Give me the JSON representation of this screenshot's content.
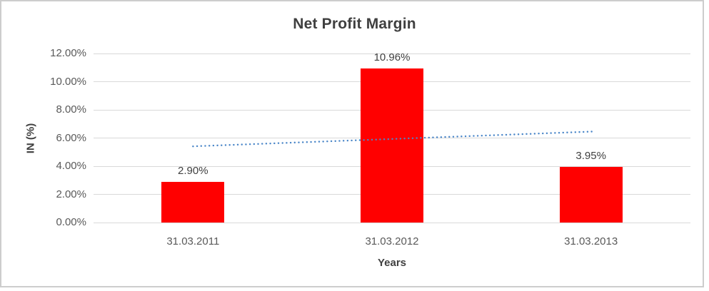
{
  "frame": {
    "border_color": "#cdcdcd",
    "background_color": "#ffffff"
  },
  "chart_data": {
    "type": "bar",
    "title": "Net Profit Margin",
    "xlabel": "Years",
    "ylabel": "IN (%)",
    "categories": [
      "31.03.2011",
      "31.03.2012",
      "31.03.2013"
    ],
    "series": [
      {
        "name": "Net Profit Margin",
        "values": [
          2.9,
          10.96,
          3.95
        ]
      }
    ],
    "data_labels": [
      "2.90%",
      "10.96%",
      "3.95%"
    ],
    "ylim": [
      0,
      12
    ],
    "ytick_step": 2,
    "ytick_labels": [
      "0.00%",
      "2.00%",
      "4.00%",
      "6.00%",
      "8.00%",
      "10.00%",
      "12.00%"
    ],
    "grid": true,
    "legend_position": "none",
    "bar_color": "#ff0000",
    "gridline_color": "#d9d9d9",
    "tick_label_color": "#595959",
    "text_color": "#404040",
    "trendline": {
      "type": "linear",
      "style": "dotted",
      "color": "#4a86c8",
      "values": [
        5.41,
        5.94,
        6.46
      ]
    }
  }
}
